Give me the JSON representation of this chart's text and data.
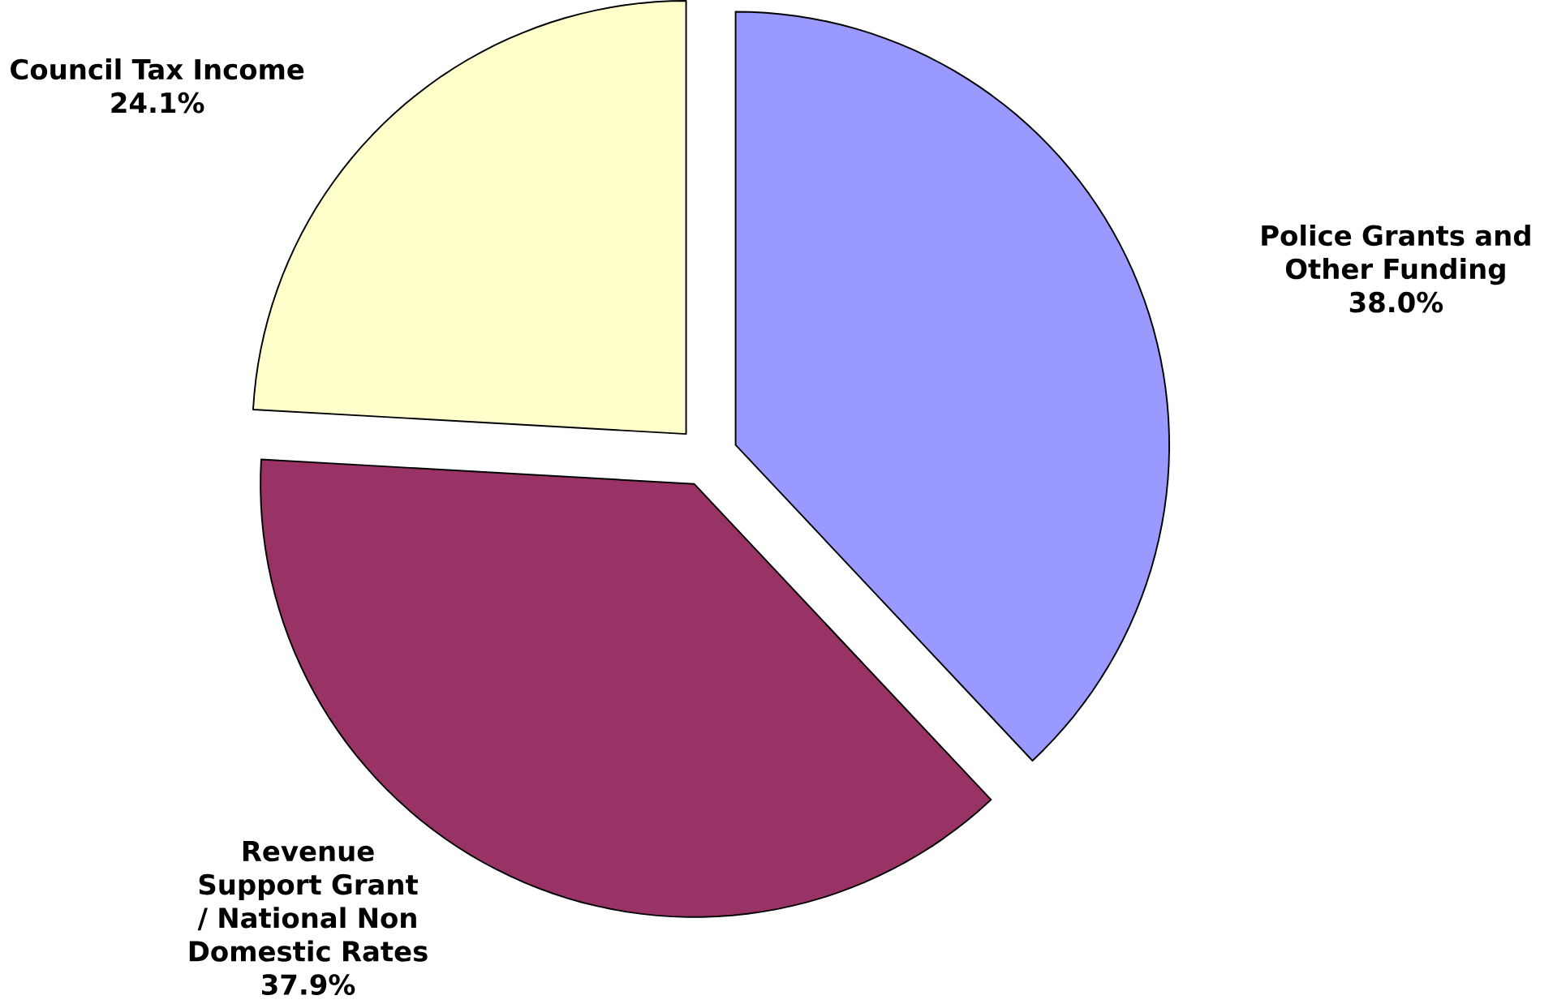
{
  "chart_data": {
    "type": "pie",
    "categories": [
      "Police Grants and Other Funding",
      "Revenue Support Grant / National Non Domestic Rates",
      "Council Tax Income"
    ],
    "values": [
      38.0,
      37.9,
      24.1
    ],
    "value_labels": [
      "38.0%",
      "37.9%",
      "24.1%"
    ],
    "colors": [
      "#9999ff",
      "#993366",
      "#ffffcc"
    ]
  }
}
